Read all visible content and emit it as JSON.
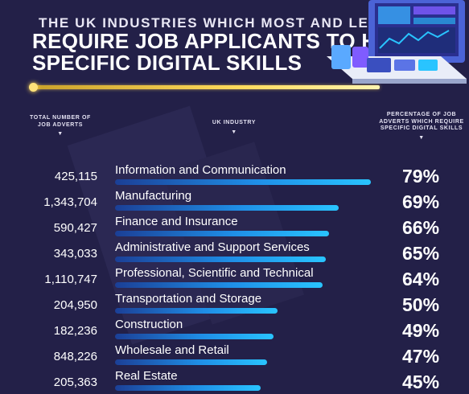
{
  "title": {
    "line1": "THE UK INDUSTRIES WHICH MOST AND LEAST",
    "line2": "REQUIRE JOB APPLICANTS TO HAVE\nSPECIFIC DIGITAL SKILLS"
  },
  "headers": {
    "adverts": "TOTAL NUMBER OF JOB ADVERTS",
    "industry": "UK INDUSTRY",
    "percentage": "PERCENTAGE OF JOB ADVERTS WHICH REQUIRE SPECIFIC DIGITAL SKILLS"
  },
  "colors": {
    "background": "#232048",
    "accent_gold": "#ffd85a",
    "bar_start": "#1b3f96",
    "bar_end": "#29c4ff"
  },
  "icons": [
    "laptop-illustration",
    "chevron-down-icon"
  ],
  "chart_data": {
    "type": "bar",
    "orientation": "horizontal",
    "categories": [
      "Information and Communication",
      "Manufacturing",
      "Finance and Insurance",
      "Administrative and Support Services",
      "Professional, Scientific and Technical",
      "Transportation and Storage",
      "Construction",
      "Wholesale and Retail",
      "Real Estate"
    ],
    "values": [
      79,
      69,
      66,
      65,
      64,
      50,
      49,
      47,
      45
    ],
    "value_labels": [
      "79%",
      "69%",
      "66%",
      "65%",
      "64%",
      "50%",
      "49%",
      "47%",
      "45%"
    ],
    "job_adverts": [
      "425,115",
      "1,343,704",
      "590,427",
      "343,033",
      "1,110,747",
      "204,950",
      "182,236",
      "848,226",
      "205,363"
    ],
    "value_unit": "%",
    "ylim": [
      0,
      100
    ],
    "grid": false
  }
}
